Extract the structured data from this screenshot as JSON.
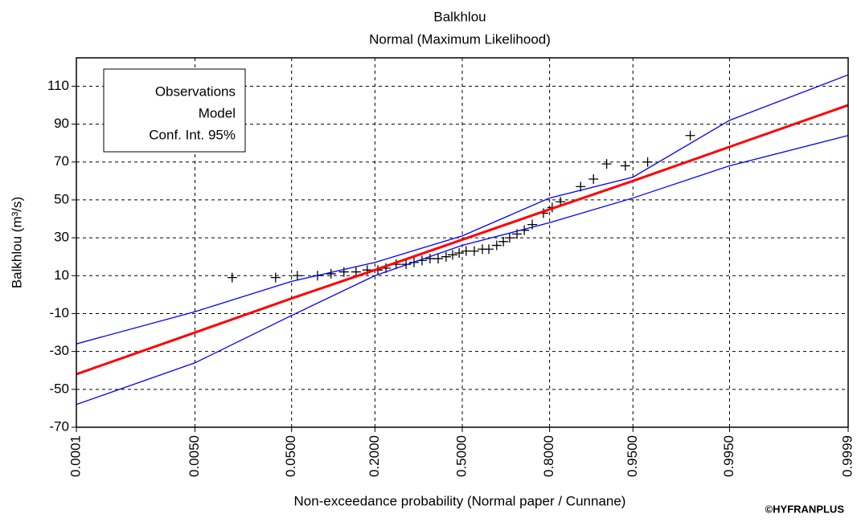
{
  "chart_data": {
    "type": "probability",
    "title": "Balkhlou",
    "subtitle": "Normal (Maximum Likelihood)",
    "x_label": "Non-exceedance probability (Normal paper / Cunnane)",
    "y_label": "Balkhlou (m³/s)",
    "credit": "©HYFRANPLUS",
    "xscale": "normal",
    "xlim": [
      0.0001,
      0.9999
    ],
    "xticks": [
      0.0001,
      {
        "value": 0.005,
        "label": "0.0050"
      },
      {
        "value": 0.05,
        "label": "0.0500"
      },
      {
        "value": 0.2,
        "label": "0.2000"
      },
      {
        "value": 0.5,
        "label": "0.5000"
      },
      {
        "value": 0.8,
        "label": "0.8000"
      },
      {
        "value": 0.95,
        "label": "0.9500"
      },
      {
        "value": 0.995,
        "label": "0.9950"
      },
      0.9999
    ],
    "ylim": [
      -70,
      125
    ],
    "yticks": [
      -70,
      -50,
      -30,
      -10,
      10,
      30,
      50,
      70,
      90,
      110
    ],
    "grid": true,
    "legend": "upper left",
    "series": [
      {
        "name": "Observations",
        "type": "scatter",
        "color": "#000000",
        "x": [
          0.0133,
          0.036,
          0.056,
          0.0815,
          0.103,
          0.127,
          0.153,
          0.18,
          0.208,
          0.231,
          0.262,
          0.294,
          0.321,
          0.349,
          0.378,
          0.408,
          0.438,
          0.463,
          0.488,
          0.515,
          0.546,
          0.577,
          0.601,
          0.63,
          0.654,
          0.676,
          0.701,
          0.725,
          0.75,
          0.783,
          0.807,
          0.828,
          0.873,
          0.897,
          0.918,
          0.942,
          0.963,
          0.986
        ],
        "values": [
          9,
          9,
          10,
          10,
          11,
          12,
          12,
          13,
          13,
          14,
          16,
          16,
          17,
          18,
          19,
          19,
          20,
          21,
          22,
          23,
          23,
          24,
          24,
          26,
          28,
          30,
          32,
          34,
          37,
          43,
          46,
          49,
          57,
          61,
          69,
          68,
          70,
          84
        ]
      },
      {
        "name": "Model",
        "type": "line",
        "color": "#ff0000",
        "x": [
          0.0001,
          0.005,
          0.05,
          0.2,
          0.5,
          0.8,
          0.95,
          0.995,
          0.9999
        ],
        "values": [
          -42,
          -20,
          -2,
          13,
          29,
          45,
          60,
          78,
          100
        ]
      },
      {
        "name": "Conf. Int. 95%",
        "type": "line",
        "color": "#0000ff",
        "x": [
          0.0001,
          0.005,
          0.05,
          0.2,
          0.5,
          0.8,
          0.95,
          0.995,
          0.9999
        ],
        "values": [
          -26,
          -9,
          7,
          17,
          31,
          51,
          62,
          92,
          116
        ]
      },
      {
        "type": "line",
        "color": "#0000ff",
        "x": [
          0.0001,
          0.005,
          0.05,
          0.2,
          0.5,
          0.8,
          0.95,
          0.995,
          0.9999
        ],
        "values": [
          -58,
          -36,
          -11,
          10,
          26,
          38,
          51,
          68,
          84
        ]
      }
    ]
  }
}
